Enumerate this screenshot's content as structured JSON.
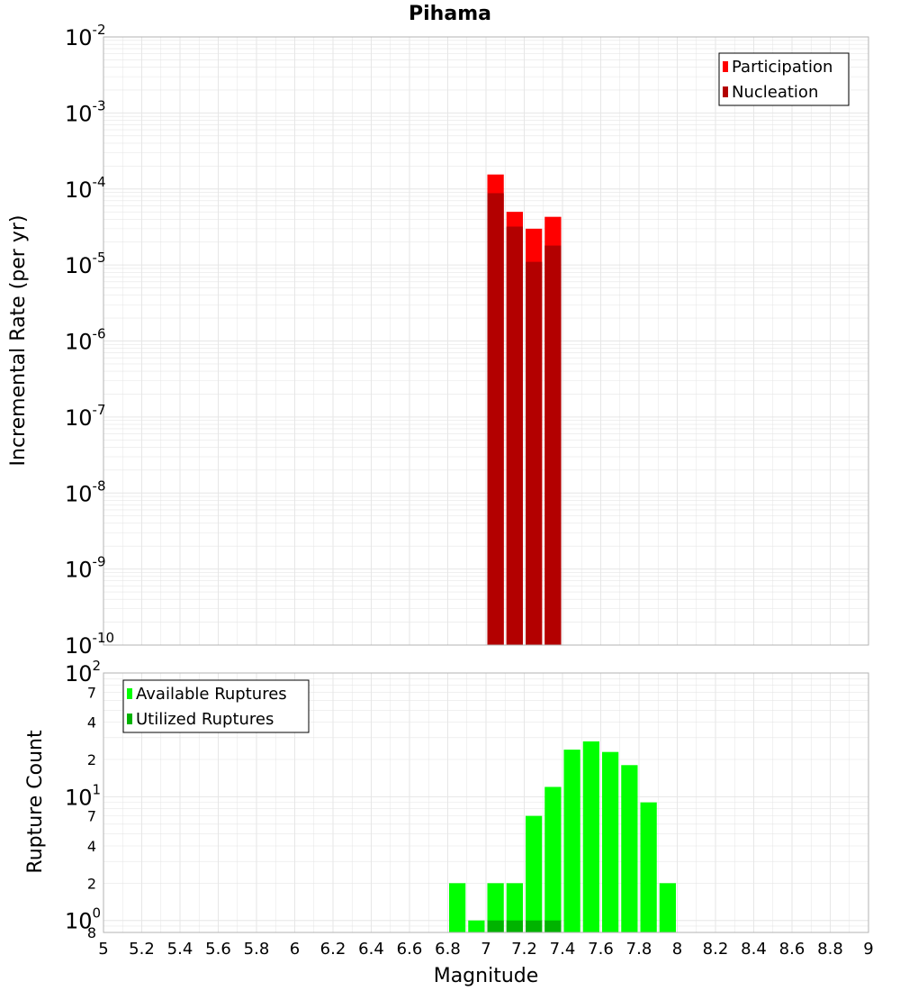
{
  "title": "Pihama",
  "xlabel": "Magnitude",
  "x_ticks": [
    "5",
    "5.2",
    "5.4",
    "5.6",
    "5.8",
    "6",
    "6.2",
    "6.4",
    "6.6",
    "6.8",
    "7",
    "7.2",
    "7.4",
    "7.6",
    "7.8",
    "8",
    "8.2",
    "8.4",
    "8.6",
    "8.8",
    "9"
  ],
  "colors": {
    "participation": "#ff0000",
    "nucleation": "#b30000",
    "available": "#00ff00",
    "utilized": "#00b300",
    "grid": "#e6e6e6",
    "frame": "#b3b3b3"
  },
  "chart_data": [
    {
      "type": "bar",
      "name": "rates",
      "ylabel": "Incremental Rate (per yr)",
      "yscale": "log",
      "ylim": [
        1e-10,
        0.01
      ],
      "xlim": [
        5,
        9
      ],
      "y_ticks": [
        {
          "value": 1e-10,
          "base": "10",
          "exp": "-10"
        },
        {
          "value": 1e-09,
          "base": "10",
          "exp": "-9"
        },
        {
          "value": 1e-08,
          "base": "10",
          "exp": "-8"
        },
        {
          "value": 1e-07,
          "base": "10",
          "exp": "-7"
        },
        {
          "value": 1e-06,
          "base": "10",
          "exp": "-6"
        },
        {
          "value": 1e-05,
          "base": "10",
          "exp": "-5"
        },
        {
          "value": 0.0001,
          "base": "10",
          "exp": "-4"
        },
        {
          "value": 0.001,
          "base": "10",
          "exp": "-3"
        },
        {
          "value": 0.01,
          "base": "10",
          "exp": "-2"
        }
      ],
      "legend": [
        "Participation",
        "Nucleation"
      ],
      "legend_position": "top-right",
      "series": [
        {
          "name": "Participation",
          "x": [
            7.05,
            7.15,
            7.25,
            7.35
          ],
          "values": [
            0.000155,
            5e-05,
            3e-05,
            4.3e-05
          ]
        },
        {
          "name": "Nucleation",
          "x": [
            7.05,
            7.15,
            7.25,
            7.35
          ],
          "values": [
            8.8e-05,
            3.2e-05,
            1.1e-05,
            1.8e-05
          ]
        }
      ]
    },
    {
      "type": "bar",
      "name": "counts",
      "ylabel": "Rupture Count",
      "yscale": "log",
      "ylim": [
        0.8,
        100
      ],
      "xlim": [
        5,
        9
      ],
      "y_ticks": [
        {
          "value": 100,
          "base": "10",
          "exp": "2",
          "major": true
        },
        {
          "value": 70,
          "label": "7"
        },
        {
          "value": 40,
          "label": "4"
        },
        {
          "value": 20,
          "label": "2"
        },
        {
          "value": 10,
          "base": "10",
          "exp": "1",
          "major": true
        },
        {
          "value": 7,
          "label": "7"
        },
        {
          "value": 4,
          "label": "4"
        },
        {
          "value": 2,
          "label": "2"
        },
        {
          "value": 1,
          "base": "10",
          "exp": "0",
          "major": true
        },
        {
          "value": 0.8,
          "label": "8"
        }
      ],
      "legend": [
        "Available Ruptures",
        "Utilized Ruptures"
      ],
      "legend_position": "top-left",
      "series": [
        {
          "name": "Available Ruptures",
          "x": [
            6.85,
            6.95,
            7.05,
            7.15,
            7.25,
            7.35,
            7.45,
            7.55,
            7.65,
            7.75,
            7.85,
            7.95
          ],
          "values": [
            2,
            1,
            2,
            2,
            7,
            12,
            24,
            28,
            23,
            18,
            9,
            2
          ]
        },
        {
          "name": "Utilized Ruptures",
          "x": [
            7.05,
            7.15,
            7.25,
            7.35
          ],
          "values": [
            1,
            1,
            1,
            1
          ]
        }
      ]
    }
  ]
}
